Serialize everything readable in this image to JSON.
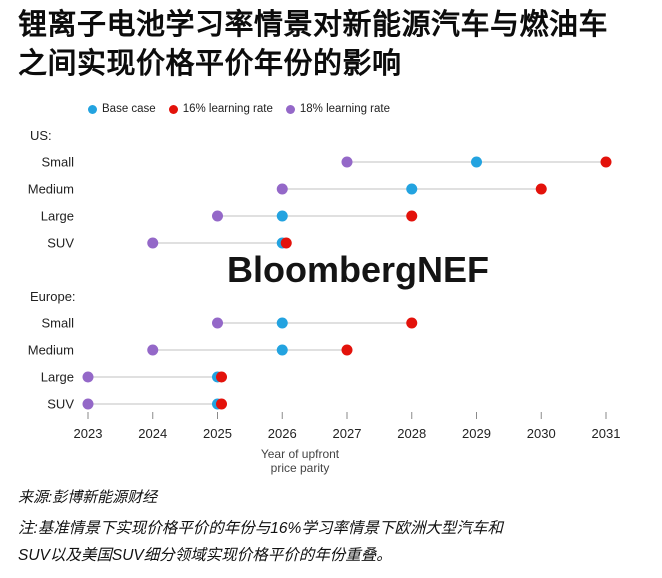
{
  "title": {
    "line1": "锂离子电池学习率情景对新能源汽车与燃油车",
    "line2": "之间实现价格平价年份的影响"
  },
  "source": "来源:彭博新能源财经",
  "note": {
    "line1": "注:基准情景下实现价格平价的年份与16%学习率情景下欧洲大型汽车和",
    "line2": "SUV以及美国SUV细分领域实现价格平价的年份重叠。"
  },
  "chart_data": {
    "type": "scatter",
    "watermark": "BloombergNEF",
    "xlabel_line1": "Year of upfront",
    "xlabel_line2": "price parity",
    "x_ticks": [
      2023,
      2024,
      2025,
      2026,
      2027,
      2028,
      2029,
      2030,
      2031
    ],
    "xlim": [
      2023,
      2031
    ],
    "grid": false,
    "legend_position": "top",
    "series": [
      {
        "name": "Base case",
        "key": "base_case",
        "color": "#23a3e0"
      },
      {
        "name": "16% learning rate",
        "key": "lr16",
        "color": "#e3120b"
      },
      {
        "name": "18% learning rate",
        "key": "lr18",
        "color": "#9468c8"
      }
    ],
    "groups": [
      {
        "label": "US:",
        "rows": [
          {
            "label": "Small",
            "base_case": 2029,
            "lr16": 2031,
            "lr18": 2027
          },
          {
            "label": "Medium",
            "base_case": 2028,
            "lr16": 2030,
            "lr18": 2026
          },
          {
            "label": "Large",
            "base_case": 2026,
            "lr16": 2028,
            "lr18": 2025
          },
          {
            "label": "SUV",
            "base_case": 2026,
            "lr16": 2026,
            "lr18": 2024
          }
        ]
      },
      {
        "label": "Europe:",
        "rows": [
          {
            "label": "Small",
            "base_case": 2026,
            "lr16": 2028,
            "lr18": 2025
          },
          {
            "label": "Medium",
            "base_case": 2026,
            "lr16": 2027,
            "lr18": 2024
          },
          {
            "label": "Large",
            "base_case": 2025,
            "lr16": 2025,
            "lr18": 2023
          },
          {
            "label": "SUV",
            "base_case": 2025,
            "lr16": 2025,
            "lr18": 2023
          }
        ]
      }
    ]
  }
}
